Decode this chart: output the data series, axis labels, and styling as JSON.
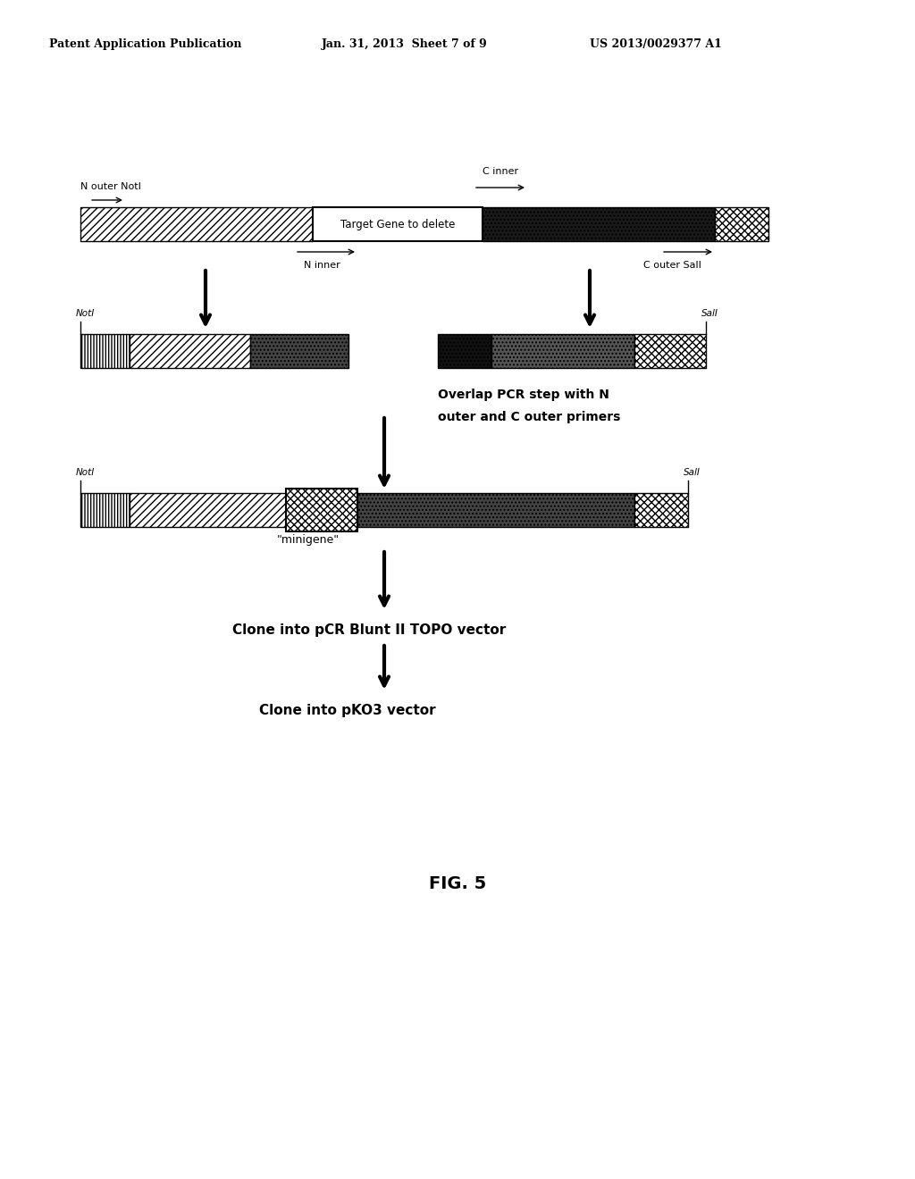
{
  "header_left": "Patent Application Publication",
  "header_mid": "Jan. 31, 2013  Sheet 7 of 9",
  "header_right": "US 2013/0029377 A1",
  "fig_label": "FIG. 5",
  "bg_color": "#ffffff",
  "text_color": "#000000"
}
